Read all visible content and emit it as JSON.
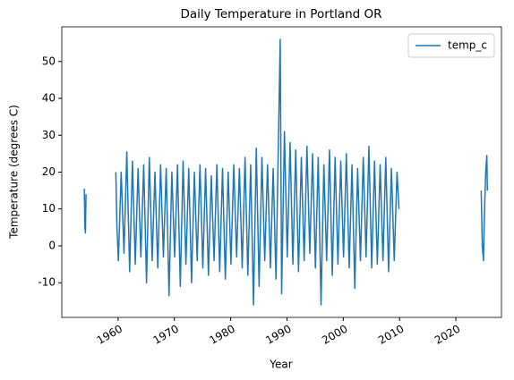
{
  "chart_data": {
    "type": "line",
    "title": "Daily Temperature in Portland OR",
    "xlabel": "Year",
    "ylabel": "Temperature (degrees C)",
    "x": [
      1954.0,
      1954.1,
      1954.2,
      1954.3,
      1957.0,
      1959.6,
      1959.8,
      1960.05,
      1960.55,
      1961.05,
      1961.55,
      1962.05,
      1962.55,
      1963.05,
      1963.55,
      1964.05,
      1964.55,
      1965.05,
      1965.55,
      1966.05,
      1966.55,
      1967.05,
      1967.55,
      1968.05,
      1968.55,
      1969.05,
      1969.55,
      1970.05,
      1970.55,
      1971.05,
      1971.55,
      1972.05,
      1972.55,
      1973.05,
      1973.55,
      1974.05,
      1974.55,
      1975.05,
      1975.55,
      1976.05,
      1976.55,
      1977.05,
      1977.55,
      1978.05,
      1978.55,
      1979.05,
      1979.55,
      1980.05,
      1980.55,
      1981.05,
      1981.55,
      1982.05,
      1982.55,
      1983.05,
      1983.55,
      1984.05,
      1984.55,
      1985.05,
      1985.55,
      1986.05,
      1986.55,
      1987.05,
      1987.55,
      1988.05,
      1988.8,
      1989.05,
      1989.55,
      1990.05,
      1990.55,
      1991.05,
      1991.55,
      1992.05,
      1992.55,
      1993.05,
      1993.55,
      1994.05,
      1994.55,
      1995.05,
      1995.55,
      1996.05,
      1996.55,
      1997.05,
      1997.55,
      1998.05,
      1998.55,
      1999.05,
      1999.55,
      2000.05,
      2000.55,
      2001.05,
      2001.55,
      2002.05,
      2002.55,
      2003.05,
      2003.55,
      2004.05,
      2004.55,
      2005.05,
      2005.55,
      2006.05,
      2006.55,
      2007.05,
      2007.55,
      2008.05,
      2008.55,
      2009.05,
      2009.55,
      2009.9,
      2015.0,
      2024.5,
      2024.7,
      2024.9,
      2025.1,
      2025.3,
      2025.5,
      2025.6
    ],
    "series": [
      {
        "name": "temp_c",
        "color": "#1f77b4",
        "values": [
          15.5,
          5,
          3.5,
          14,
          null,
          20,
          5,
          -4,
          20,
          -2,
          25.5,
          -7,
          23,
          -5,
          21,
          -3,
          22,
          -10,
          24,
          -4,
          20,
          -6,
          22,
          -3,
          21,
          -13.5,
          20,
          -3,
          22,
          -11,
          23,
          -5,
          21,
          -10,
          20,
          -4,
          22,
          -6,
          21,
          -8,
          19,
          -4,
          22,
          -7,
          21,
          -9,
          20,
          -5,
          22,
          -3,
          21,
          -6,
          24,
          -8,
          22,
          -16,
          26.5,
          -11,
          24,
          -4,
          22,
          -6,
          21,
          -9,
          56,
          -13,
          31,
          -3,
          28,
          -5,
          26,
          -7,
          24,
          -4,
          27,
          -2,
          25,
          -6,
          24,
          -16,
          22,
          -4,
          26,
          -8,
          24,
          -5,
          23,
          -3,
          25,
          -6,
          22,
          -11.5,
          21,
          -4,
          24,
          -3,
          27,
          -6,
          23,
          -5,
          22,
          -4,
          24,
          -7,
          21,
          -4,
          20,
          10,
          null,
          15,
          0,
          -4,
          10,
          20,
          24.5,
          15
        ]
      }
    ],
    "xlim": [
      1950,
      2028.1
    ],
    "ylim": [
      -19.4,
      59.4
    ],
    "xticks": [
      1960,
      1970,
      1980,
      1990,
      2000,
      2010,
      2020
    ],
    "yticks": [
      -10,
      0,
      10,
      20,
      30,
      40,
      50
    ],
    "legend": "upper right"
  }
}
